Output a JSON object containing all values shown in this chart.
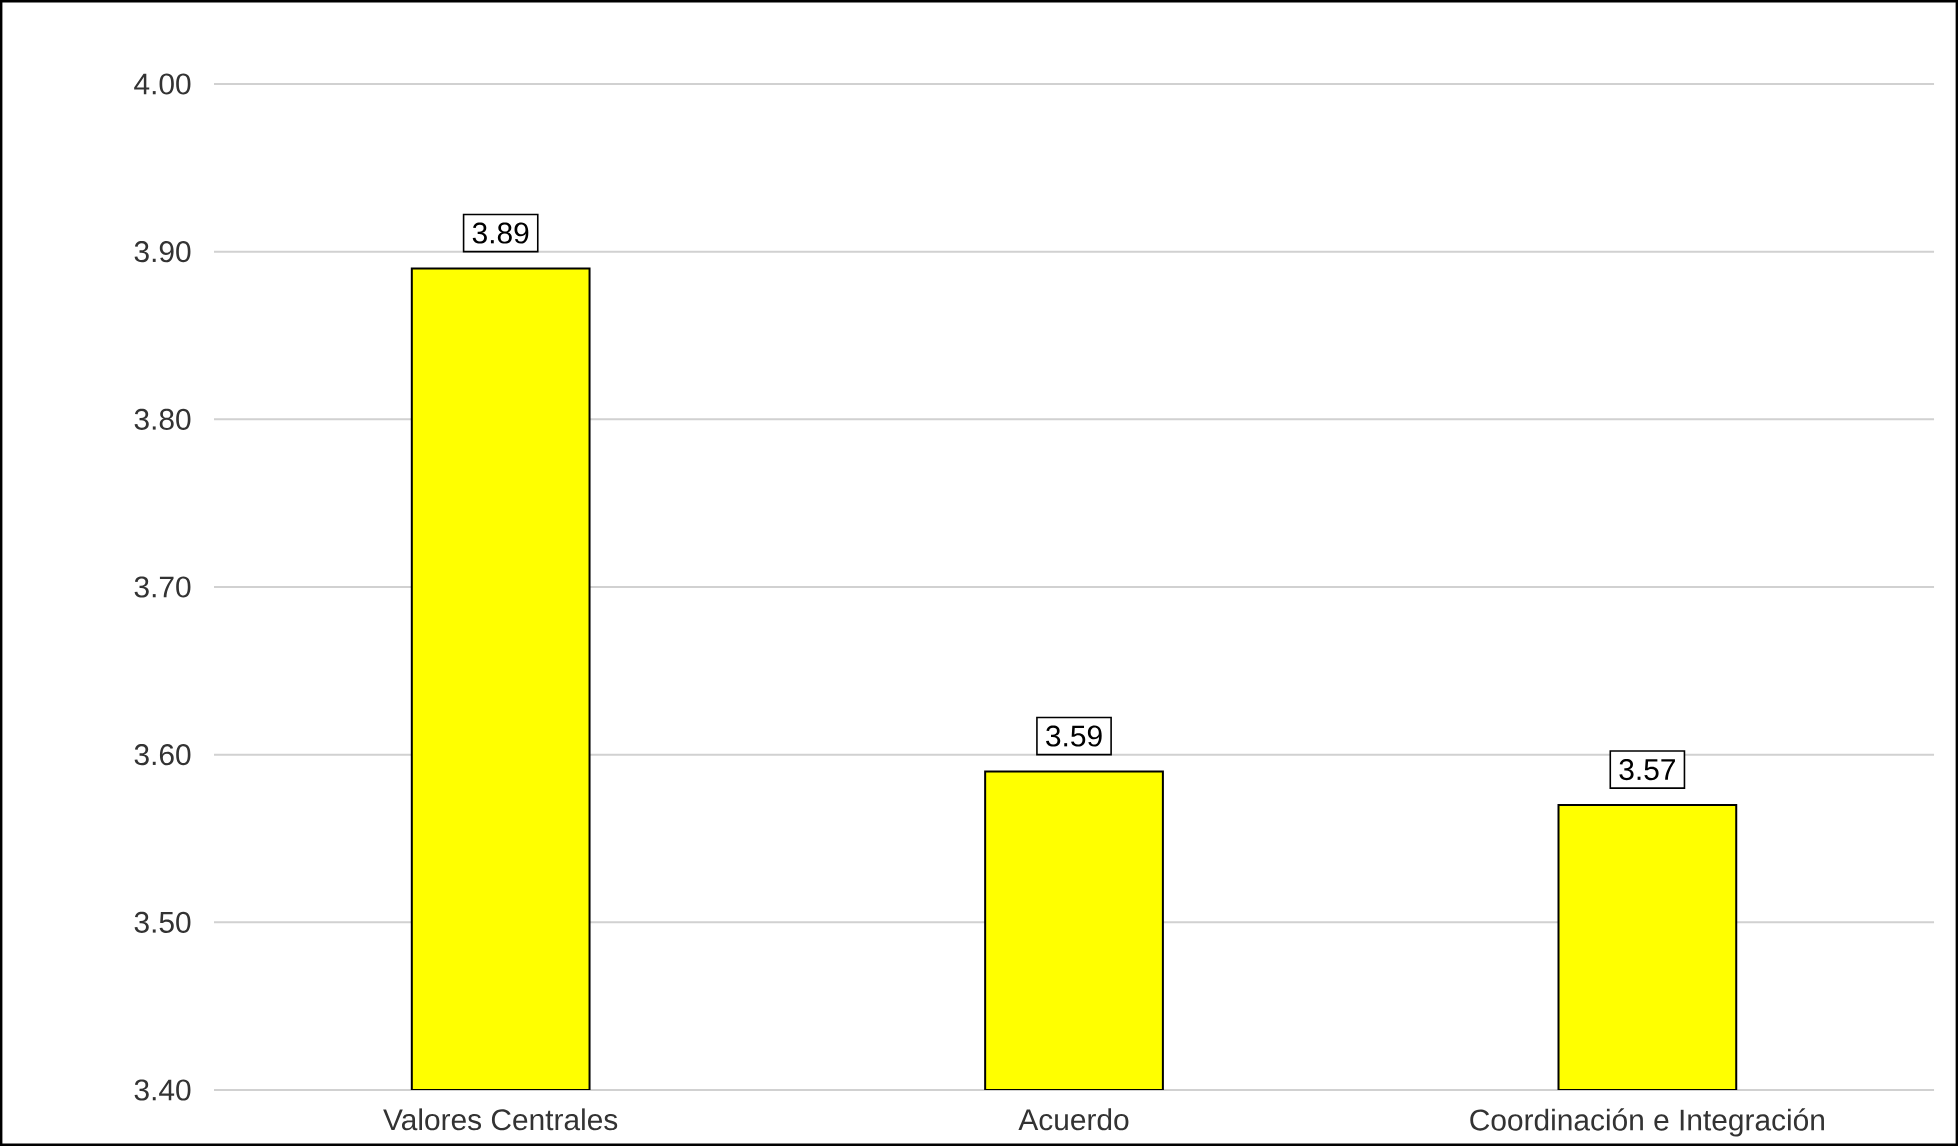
{
  "chart_data": {
    "type": "bar",
    "categories": [
      "Valores Centrales",
      "Acuerdo",
      "Coordinación e Integración"
    ],
    "values": [
      3.89,
      3.59,
      3.57
    ],
    "color": "#ffff00",
    "ylim": [
      3.4,
      4.0
    ],
    "yticks": [
      {
        "value": 3.4,
        "label": "3.40"
      },
      {
        "value": 3.5,
        "label": "3.50"
      },
      {
        "value": 3.6,
        "label": "3.60"
      },
      {
        "value": 3.7,
        "label": "3.70"
      },
      {
        "value": 3.8,
        "label": "3.80"
      },
      {
        "value": 3.9,
        "label": "3.90"
      },
      {
        "value": 4.0,
        "label": "4.00"
      }
    ],
    "grid": "y",
    "data_labels": true
  }
}
